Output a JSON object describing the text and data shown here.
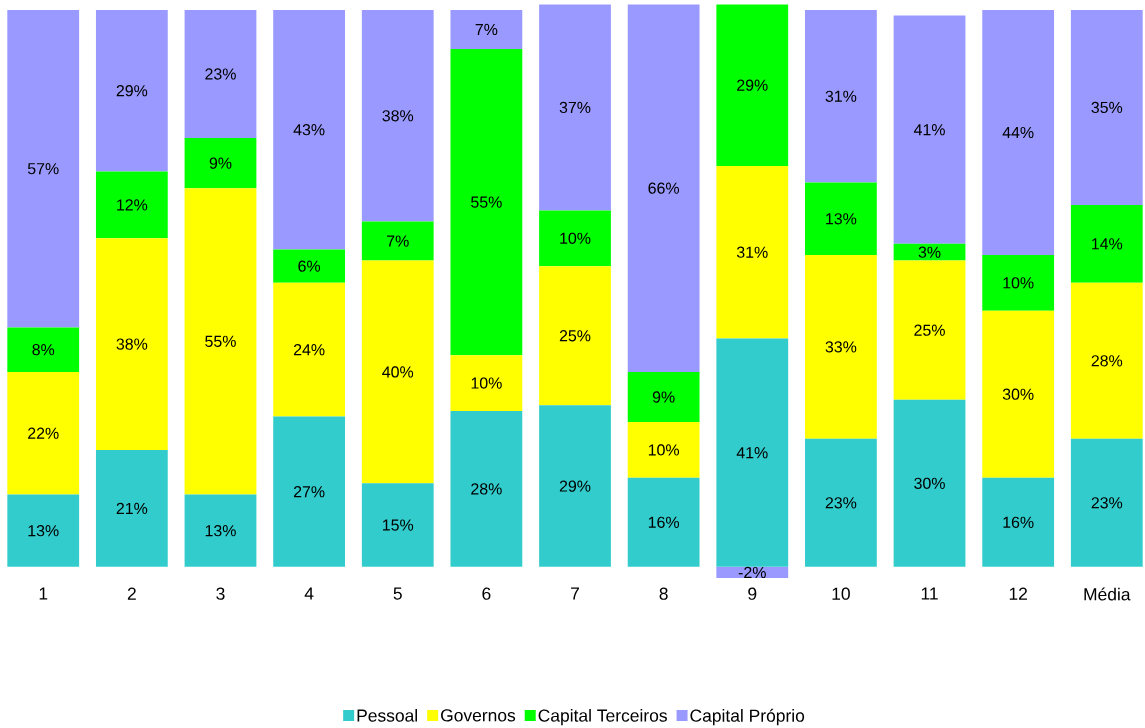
{
  "chart_data": {
    "type": "bar",
    "stacked": true,
    "categories": [
      "1",
      "2",
      "3",
      "4",
      "5",
      "6",
      "7",
      "8",
      "9",
      "10",
      "11",
      "12",
      "Média"
    ],
    "series": [
      {
        "name": "Pessoal",
        "color": "#33cccc",
        "values": [
          13,
          21,
          13,
          27,
          15,
          28,
          29,
          16,
          41,
          23,
          30,
          16,
          23
        ],
        "value_labels": [
          "13%",
          "21%",
          "13%",
          "27%",
          "15%",
          "28%",
          "29%",
          "16%",
          "41%",
          "23%",
          "30%",
          "16%",
          "23%"
        ]
      },
      {
        "name": "Governos",
        "color": "#ffff00",
        "values": [
          22,
          38,
          55,
          24,
          40,
          10,
          25,
          10,
          31,
          33,
          25,
          30,
          28
        ],
        "value_labels": [
          "22%",
          "38%",
          "55%",
          "24%",
          "40%",
          "10%",
          "25%",
          "10%",
          "31%",
          "33%",
          "25%",
          "30%",
          "28%"
        ]
      },
      {
        "name": "Capital Terceiros",
        "color": "#00ff00",
        "values": [
          8,
          12,
          9,
          6,
          7,
          55,
          10,
          9,
          29,
          13,
          3,
          10,
          14
        ],
        "value_labels": [
          "8%",
          "12%",
          "9%",
          "6%",
          "7%",
          "55%",
          "10%",
          "9%",
          "29%",
          "13%",
          "3%",
          "10%",
          "14%"
        ]
      },
      {
        "name": "Capital Próprio",
        "color": "#9999ff",
        "values": [
          57,
          29,
          23,
          43,
          38,
          7,
          37,
          66,
          -2,
          31,
          41,
          44,
          35
        ],
        "value_labels": [
          "57%",
          "29%",
          "23%",
          "43%",
          "38%",
          "7%",
          "37%",
          "66%",
          "-2%",
          "31%",
          "41%",
          "44%",
          "35%"
        ]
      }
    ],
    "tick_labels": "x",
    "legend": "bottom"
  }
}
